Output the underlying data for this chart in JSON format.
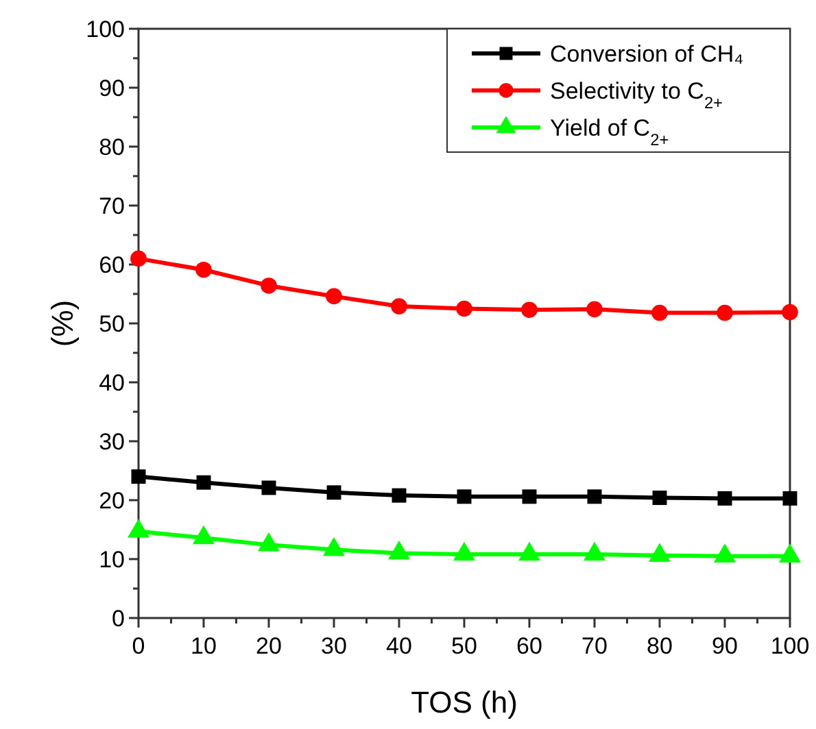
{
  "chart_data": {
    "type": "line",
    "xlabel": "TOS (h)",
    "ylabel": "(%)",
    "x": [
      0,
      10,
      20,
      30,
      40,
      50,
      60,
      70,
      80,
      90,
      100
    ],
    "series": [
      {
        "name": "Conversion of CH₄",
        "color": "#000000",
        "marker": "square",
        "values": [
          24.0,
          23.0,
          22.1,
          21.3,
          20.8,
          20.6,
          20.6,
          20.6,
          20.4,
          20.3,
          20.3
        ]
      },
      {
        "name": "Selectivity to C$_{2+}$",
        "color": "#ff0000",
        "marker": "circle",
        "values": [
          61.0,
          59.1,
          56.4,
          54.6,
          52.9,
          52.5,
          52.3,
          52.4,
          51.8,
          51.8,
          51.9
        ]
      },
      {
        "name": "Yield of C$_{2+}$",
        "color": "#00ff00",
        "marker": "triangle",
        "values": [
          14.7,
          13.6,
          12.4,
          11.6,
          11.0,
          10.8,
          10.8,
          10.8,
          10.6,
          10.5,
          10.5
        ]
      }
    ],
    "xlim": [
      0,
      100
    ],
    "xticks": [
      0,
      10,
      20,
      30,
      40,
      50,
      60,
      70,
      80,
      90,
      100
    ],
    "ylim": [
      0,
      100
    ],
    "yticks": [
      0,
      10,
      20,
      30,
      40,
      50,
      60,
      70,
      80,
      90,
      100
    ],
    "legend": "top right",
    "grid": false
  }
}
